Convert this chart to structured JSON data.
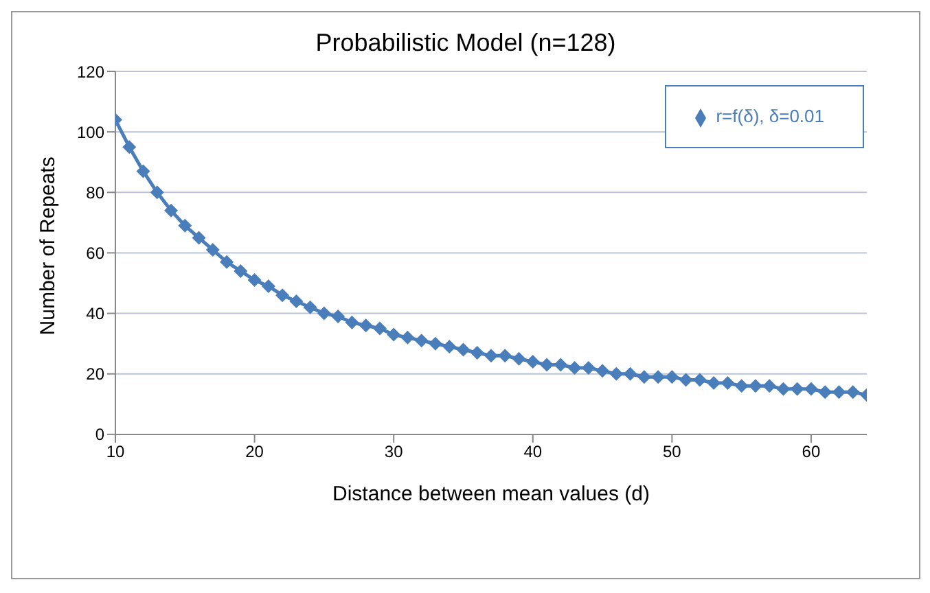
{
  "chart_data": {
    "type": "line",
    "title": "Probabilistic Model (n=128)",
    "xlabel": "Distance between mean values (d)",
    "ylabel": "Number of Repeats",
    "x": [
      10,
      11,
      12,
      13,
      14,
      15,
      16,
      17,
      18,
      19,
      20,
      21,
      22,
      23,
      24,
      25,
      26,
      27,
      28,
      29,
      30,
      31,
      32,
      33,
      34,
      35,
      36,
      37,
      38,
      39,
      40,
      41,
      42,
      43,
      44,
      45,
      46,
      47,
      48,
      49,
      50,
      51,
      52,
      53,
      54,
      55,
      56,
      57,
      58,
      59,
      60,
      61,
      62,
      63,
      64
    ],
    "series": [
      {
        "name": "r=f(δ),  δ=0.01",
        "color": "#4a7ebb",
        "values": [
          104,
          95,
          87,
          80,
          74,
          69,
          65,
          61,
          57,
          54,
          51,
          49,
          46,
          44,
          42,
          40,
          39,
          37,
          36,
          35,
          33,
          32,
          31,
          30,
          29,
          28,
          27,
          26,
          26,
          25,
          24,
          23,
          23,
          22,
          22,
          21,
          20,
          20,
          19,
          19,
          19,
          18,
          18,
          17,
          17,
          16,
          16,
          16,
          15,
          15,
          15,
          14,
          14,
          14,
          13
        ]
      }
    ],
    "xlim": [
      10,
      64
    ],
    "xticks": [
      10,
      20,
      30,
      40,
      50,
      60
    ],
    "ylim": [
      0,
      120
    ],
    "yticks": [
      0,
      20,
      40,
      60,
      80,
      100,
      120
    ],
    "grid": "y",
    "legend": "top right",
    "marker": "diamond",
    "line_style": "solid"
  }
}
